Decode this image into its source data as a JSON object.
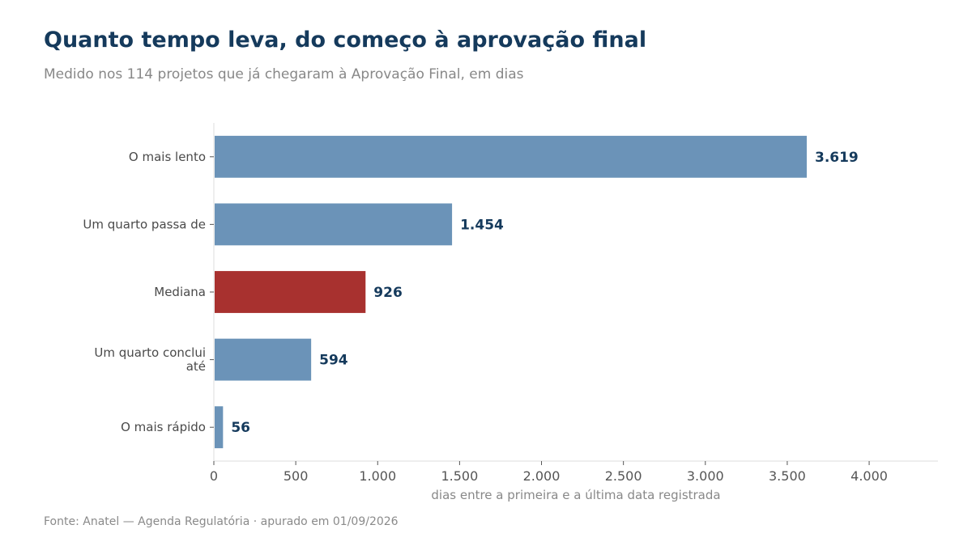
{
  "header": {
    "title": "Quanto tempo leva, do começo à aprovação final",
    "subtitle": "Medido nos 114 projetos que já chegaram à Aprovação Final, em dias"
  },
  "footer": {
    "source": "Fonte: Anatel — Agenda Regulatória · apurado em 01/09/2026"
  },
  "chart_data": {
    "type": "bar",
    "orientation": "horizontal",
    "categories": [
      [
        "O mais lento"
      ],
      [
        "Um quarto passa de"
      ],
      [
        "Mediana"
      ],
      [
        "Um quarto conclui",
        "até"
      ],
      [
        "O mais rápido"
      ]
    ],
    "values": [
      3619,
      1454,
      926,
      594,
      56
    ],
    "value_labels": [
      "3.619",
      "1.454",
      "926",
      "594",
      "56"
    ],
    "highlight": [
      false,
      false,
      true,
      false,
      false
    ],
    "xlabel": "dias entre a primeira e a última data registrada",
    "ylabel": "",
    "xlim": [
      0,
      4420
    ],
    "xticks": [
      0,
      500,
      1000,
      1500,
      2000,
      2500,
      3000,
      3500,
      4000
    ],
    "xtick_labels": [
      "0",
      "500",
      "1.000",
      "1.500",
      "2.000",
      "2.500",
      "3.000",
      "3.500",
      "4.000"
    ],
    "grid": false,
    "colors": {
      "bar": "#6b93b8",
      "highlight": "#a8312f",
      "value_label": "#153a5c",
      "axis": "#dddddd"
    }
  }
}
